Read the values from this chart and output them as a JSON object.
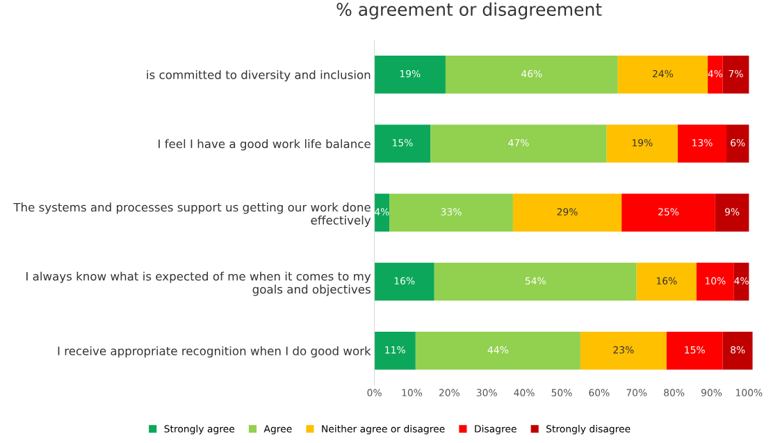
{
  "chart_data": {
    "type": "bar",
    "orientation": "horizontal",
    "stacked": true,
    "title": "% agreement or disagreement",
    "categories": [
      "is committed to diversity and inclusion",
      "I feel I have a good work life balance",
      "The systems and processes support us getting our work done effectively",
      "I always know what is expected of me when it comes to my goals and objectives",
      "I receive appropriate recognition when I do good work"
    ],
    "series": [
      {
        "name": "Strongly agree",
        "color": "#0ca75a",
        "values": [
          19,
          15,
          4,
          16,
          11
        ],
        "value_labels": [
          "19%",
          "15%",
          "4%",
          "16%",
          "11%"
        ]
      },
      {
        "name": "Agree",
        "color": "#92d050",
        "values": [
          46,
          47,
          33,
          54,
          44
        ],
        "value_labels": [
          "46%",
          "47%",
          "33%",
          "54%",
          "44%"
        ]
      },
      {
        "name": "Neither agree or disagree",
        "color": "#ffc000",
        "values": [
          24,
          19,
          29,
          16,
          23
        ],
        "value_labels": [
          "24%",
          "19%",
          "29%",
          "16%",
          "23%"
        ]
      },
      {
        "name": "Disagree",
        "color": "#ff0000",
        "values": [
          4,
          13,
          25,
          10,
          15
        ],
        "value_labels": [
          "4%",
          "13%",
          "25%",
          "10%",
          "15%"
        ]
      },
      {
        "name": "Strongly disagree",
        "color": "#c00000",
        "values": [
          7,
          6,
          9,
          4,
          8
        ],
        "value_labels": [
          "7%",
          "6%",
          "9%",
          "4%",
          "8%"
        ]
      }
    ],
    "xlim": [
      0,
      101
    ],
    "xticks": [
      {
        "value": 0,
        "label": "0%"
      },
      {
        "value": 10,
        "label": "10%"
      },
      {
        "value": 20,
        "label": "20%"
      },
      {
        "value": 30,
        "label": "30%"
      },
      {
        "value": 40,
        "label": "40%"
      },
      {
        "value": 50,
        "label": "50%"
      },
      {
        "value": 60,
        "label": "60%"
      },
      {
        "value": 70,
        "label": "70%"
      },
      {
        "value": 80,
        "label": "80%"
      },
      {
        "value": 90,
        "label": "90%"
      },
      {
        "value": 100,
        "label": "100%"
      }
    ],
    "grid": false,
    "legend": "bottom"
  }
}
